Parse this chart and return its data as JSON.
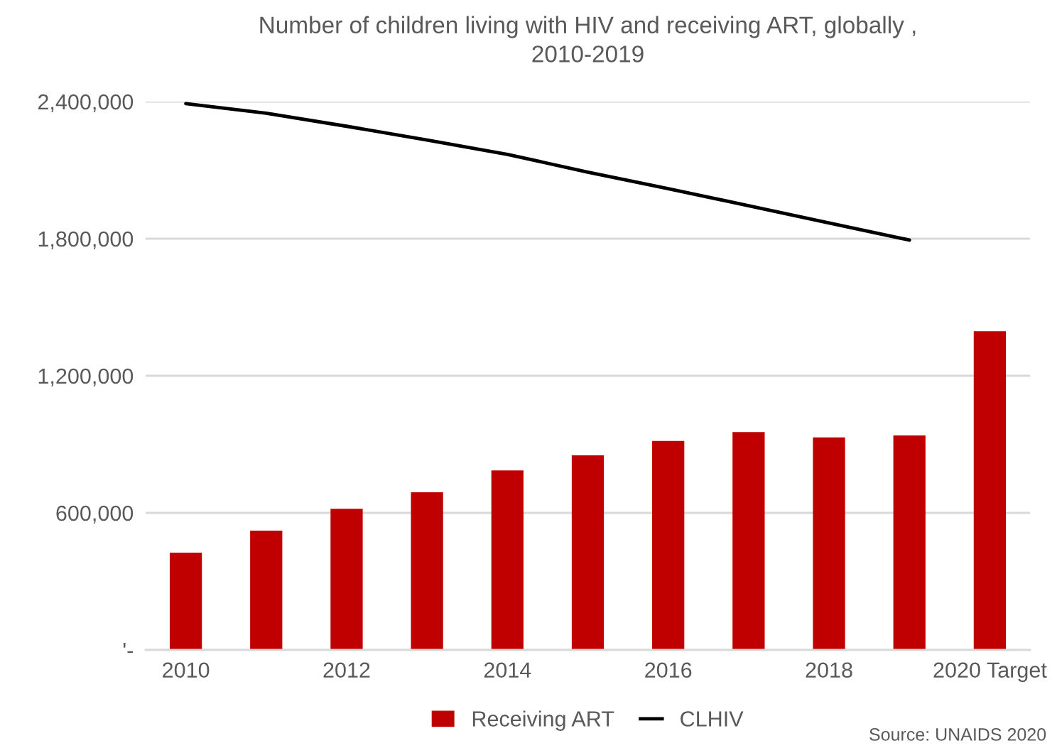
{
  "chart_data": {
    "type": "bar",
    "title": "Number of children living with HIV and receiving ART, globally ,\n2010-2019",
    "categories": [
      "2010",
      null,
      "2012",
      null,
      "2014",
      null,
      "2016",
      null,
      "2018",
      null,
      "2020 Target"
    ],
    "series": [
      {
        "name": "Receiving ART",
        "color": "#c00000",
        "values": [
          426000,
          522000,
          618000,
          690000,
          786000,
          852000,
          915000,
          954000,
          930000,
          939000,
          1395000
        ]
      },
      {
        "name": "CLHIV",
        "type": "line",
        "color": "#000000",
        "values": [
          2391000,
          2349000,
          2292000,
          2232000,
          2169000,
          2091000,
          2019000,
          1944000,
          1869000,
          1794000,
          null
        ]
      }
    ],
    "ylim": [
      0,
      2400000
    ],
    "yticks": [
      {
        "value": 0,
        "label": "'-"
      },
      {
        "value": 600000,
        "label": "600,000"
      },
      {
        "value": 1200000,
        "label": "1,200,000"
      },
      {
        "value": 1800000,
        "label": "1,800,000"
      },
      {
        "value": 2400000,
        "label": "2,400,000"
      }
    ],
    "grid": "y",
    "legend": "bottom",
    "marker": "none",
    "line_style": "solid",
    "annotations": [
      "Source: UNAIDS 2020"
    ]
  }
}
